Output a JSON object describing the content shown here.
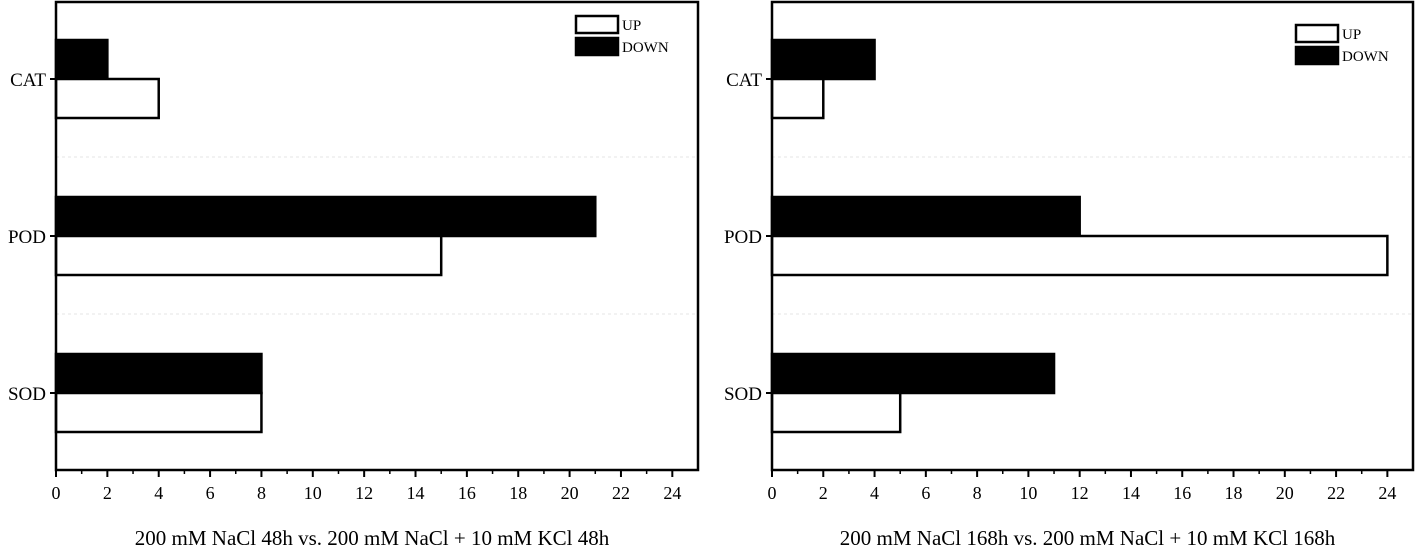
{
  "colors": {
    "up": "#ffffff",
    "down": "#000000",
    "stroke": "#000000"
  },
  "chart_data": [
    {
      "type": "bar",
      "orientation": "horizontal",
      "categories": [
        "CAT",
        "POD",
        "SOD"
      ],
      "series": [
        {
          "name": "UP",
          "values": [
            4,
            15,
            8
          ]
        },
        {
          "name": "DOWN",
          "values": [
            2,
            21,
            8
          ]
        }
      ],
      "xlabel": "200 mM NaCl 48h vs. 200 mM NaCl + 10 mM KCl 48h",
      "xlim": [
        0,
        25
      ],
      "xticks": [
        0,
        2,
        4,
        6,
        8,
        10,
        12,
        14,
        16,
        18,
        20,
        22,
        24
      ],
      "legend": "top-right",
      "grid": false
    },
    {
      "type": "bar",
      "orientation": "horizontal",
      "categories": [
        "CAT",
        "POD",
        "SOD"
      ],
      "series": [
        {
          "name": "UP",
          "values": [
            2,
            24,
            5
          ]
        },
        {
          "name": "DOWN",
          "values": [
            4,
            12,
            11
          ]
        }
      ],
      "xlabel": "200 mM NaCl 168h vs. 200 mM NaCl + 10 mM KCl 168h",
      "xlim": [
        0,
        25
      ],
      "xticks": [
        0,
        2,
        4,
        6,
        8,
        10,
        12,
        14,
        16,
        18,
        20,
        22,
        24
      ],
      "legend": "top-right",
      "grid": false
    }
  ]
}
